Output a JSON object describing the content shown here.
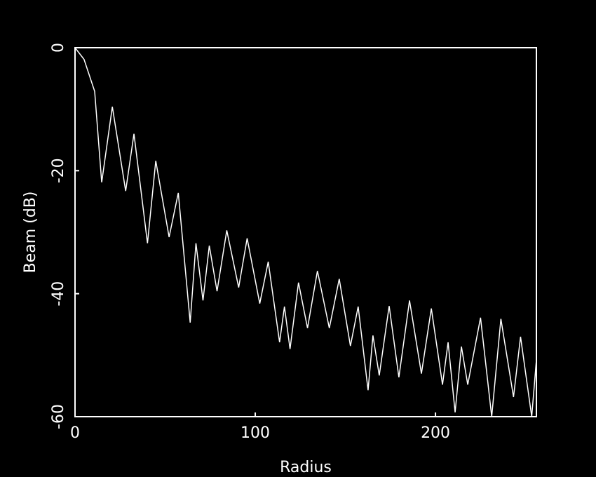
{
  "chart_data": {
    "type": "line",
    "xlabel": "Radius",
    "ylabel": "Beam (dB)",
    "xlim": [
      0,
      256
    ],
    "ylim": [
      -60,
      0
    ],
    "xticks": [
      0,
      100,
      200
    ],
    "yticks": [
      0,
      -20,
      -40,
      -60
    ],
    "background": "#000000",
    "series": [
      {
        "color": "#ffffff",
        "x": [
          0,
          5,
          10.9,
          14.8,
          20.7,
          28.1,
          32.7,
          40.2,
          44.8,
          52.2,
          57.3,
          63.9,
          67.1,
          71,
          74.5,
          78.8,
          84.2,
          90.8,
          95.5,
          102.5,
          107.2,
          113.5,
          116.2,
          119.3,
          124,
          129,
          134.5,
          141.1,
          146.6,
          152.8,
          157.1,
          162.6,
          165.3,
          168.8,
          174.3,
          179.7,
          185.6,
          192.2,
          197.7,
          203.9,
          207,
          210.9,
          214.4,
          217.9,
          225,
          231.2,
          236.3,
          243.3,
          247.2,
          253.4,
          256.1
        ],
        "values": [
          0,
          -1.9,
          -7.1,
          -21.9,
          -9.6,
          -23.3,
          -14,
          -31.8,
          -18.4,
          -30.8,
          -23.6,
          -44.7,
          -31.8,
          -41.1,
          -32.2,
          -39.6,
          -29.7,
          -39,
          -31,
          -41.6,
          -34.8,
          -47.9,
          -42.1,
          -49,
          -38.2,
          -45.6,
          -36.3,
          -45.6,
          -37.6,
          -48.5,
          -42.1,
          -55.7,
          -46.8,
          -53.3,
          -42,
          -53.6,
          -41.1,
          -53,
          -42.4,
          -54.8,
          -47.9,
          -59.3,
          -48.6,
          -54.8,
          -43.9,
          -60,
          -44.1,
          -56.8,
          -47,
          -60,
          -50.4
        ]
      }
    ]
  }
}
